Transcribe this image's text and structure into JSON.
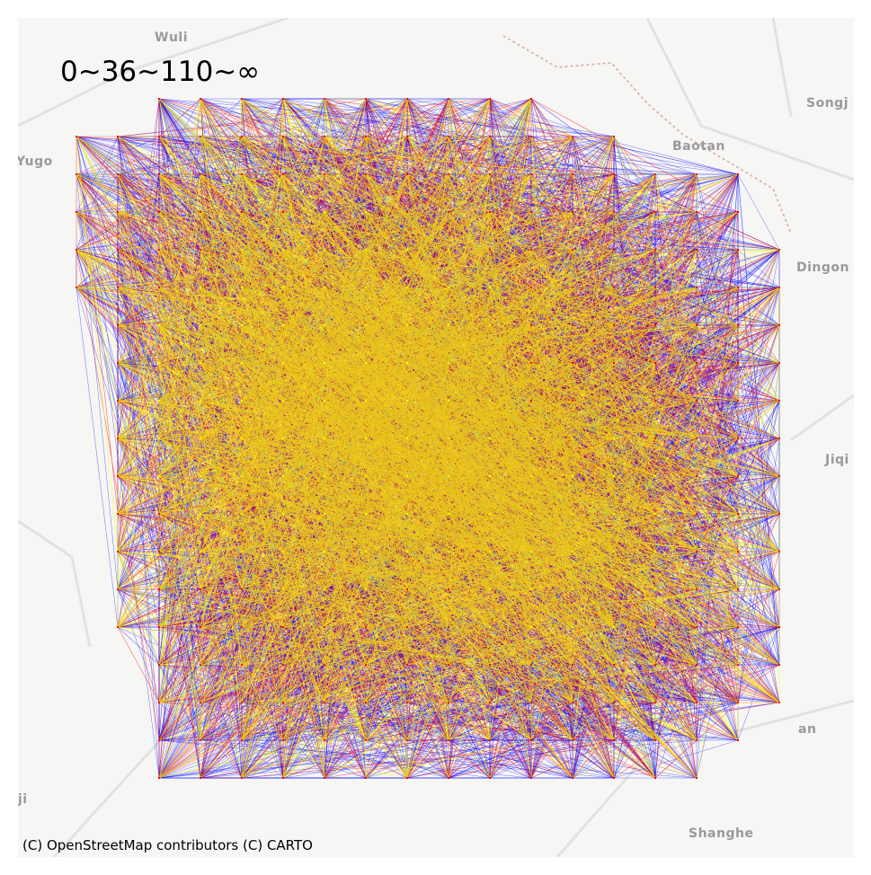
{
  "legend": {
    "label": "0~36~110~∞"
  },
  "attribution": "(C) OpenStreetMap contributors (C) CARTO",
  "basemap_labels": [
    {
      "key": "wuli",
      "text": "Wuli"
    },
    {
      "key": "yugo",
      "text": "Yugo"
    },
    {
      "key": "songj",
      "text": "Songj"
    },
    {
      "key": "baotan",
      "text": "Baotan"
    },
    {
      "key": "dingon",
      "text": "Dingon"
    },
    {
      "key": "jiqi",
      "text": "Jiqi"
    },
    {
      "key": "shanghe",
      "text": "Shanghe"
    },
    {
      "key": "an",
      "text": "an"
    },
    {
      "key": "ji",
      "text": "ji"
    }
  ],
  "flow_classes": [
    {
      "range": "0~36",
      "color": "#0000ff"
    },
    {
      "range": "36~110",
      "color": "#ff0000"
    },
    {
      "range": "110~∞",
      "color": "#ffff00"
    }
  ],
  "basemap": {
    "land_color": "#f6f6f4",
    "road_color": "#e2e2e0",
    "boundary_color": "#d9a6a6"
  }
}
